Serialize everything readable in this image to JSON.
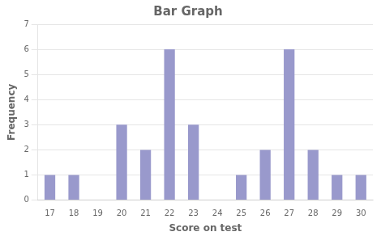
{
  "chart_data": {
    "type": "bar",
    "title": "Bar Graph",
    "xlabel": "Score on test",
    "ylabel": "Frequency",
    "categories": [
      17,
      18,
      19,
      20,
      21,
      22,
      23,
      24,
      25,
      26,
      27,
      28,
      29,
      30
    ],
    "values": [
      1,
      1,
      0,
      3,
      2,
      6,
      3,
      0,
      1,
      2,
      6,
      2,
      1,
      1
    ],
    "color": "#9999cc",
    "ylim": [
      0,
      7
    ],
    "yticks": [
      0,
      1,
      2,
      3,
      4,
      5,
      6,
      7
    ],
    "grid": true
  }
}
